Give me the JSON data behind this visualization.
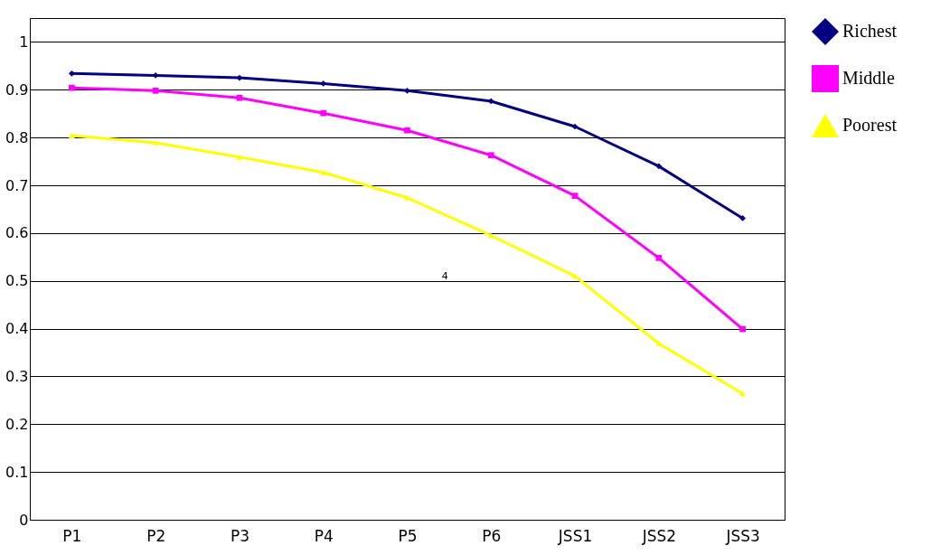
{
  "chart_data": {
    "type": "line",
    "categories": [
      "P1",
      "P2",
      "P3",
      "P4",
      "P5",
      "P6",
      "JSS1",
      "JSS2",
      "JSS3"
    ],
    "series": [
      {
        "name": "Richest",
        "color": "#000080",
        "marker": "diamond",
        "values": [
          0.934,
          0.93,
          0.925,
          0.913,
          0.898,
          0.876,
          0.823,
          0.74,
          0.631
        ]
      },
      {
        "name": "Middle",
        "color": "#ff00ff",
        "marker": "square",
        "values": [
          0.904,
          0.898,
          0.883,
          0.851,
          0.815,
          0.763,
          0.678,
          0.548,
          0.399
        ]
      },
      {
        "name": "Poorest",
        "color": "#ffff00",
        "marker": "triangle",
        "values": [
          0.804,
          0.789,
          0.759,
          0.727,
          0.674,
          0.595,
          0.51,
          0.369,
          0.264
        ]
      }
    ],
    "ylim": [
      0,
      1.05
    ],
    "yticks": [
      0,
      0.1,
      0.2,
      0.3,
      0.4,
      0.5,
      0.6,
      0.7,
      0.8,
      0.9,
      1
    ],
    "grid": "y",
    "legend": "right",
    "annotations": [
      "4"
    ]
  }
}
